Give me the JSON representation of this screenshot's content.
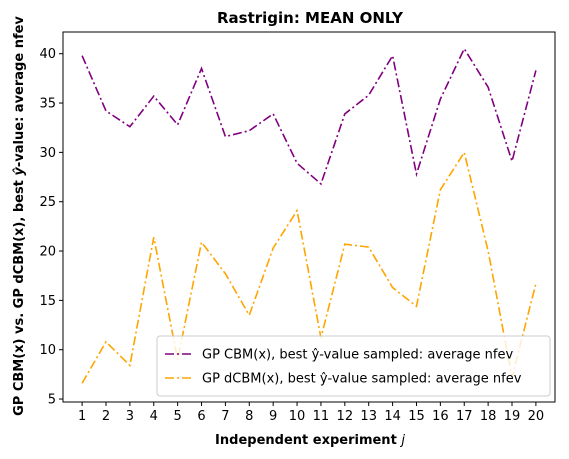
{
  "chart_data": {
    "type": "line",
    "title": "Rastrigin: MEAN ONLY",
    "xlabel": "Independent experiment j",
    "ylabel": "GP CBM(x) vs. GP dCBM(x), best ŷ-value: average nfev",
    "x": [
      1,
      2,
      3,
      4,
      5,
      6,
      7,
      8,
      9,
      10,
      11,
      12,
      13,
      14,
      15,
      16,
      17,
      18,
      19,
      20
    ],
    "xlim": [
      0.2,
      20.8
    ],
    "ylim": [
      4.7,
      42.2
    ],
    "yticks": [
      5,
      10,
      15,
      20,
      25,
      30,
      35,
      40
    ],
    "grid": false,
    "legend_position": "lower-right",
    "series": [
      {
        "name": "GP CBM(x), best ŷ-value sampled: average nfev",
        "color": "#800080",
        "values": [
          39.8,
          34.2,
          32.6,
          35.7,
          32.8,
          38.5,
          31.6,
          32.2,
          33.9,
          28.9,
          26.8,
          33.9,
          35.8,
          39.8,
          27.8,
          35.4,
          40.5,
          36.6,
          29.1,
          38.3
        ]
      },
      {
        "name": "GP dCBM(x), best ŷ-value sampled: average nfev",
        "color": "#FFA500",
        "values": [
          6.6,
          10.8,
          8.4,
          21.4,
          9.0,
          20.9,
          17.7,
          13.5,
          20.3,
          24.1,
          11.2,
          20.7,
          20.4,
          16.3,
          14.4,
          26.2,
          30.0,
          20.0,
          7.2,
          16.7
        ]
      }
    ]
  }
}
